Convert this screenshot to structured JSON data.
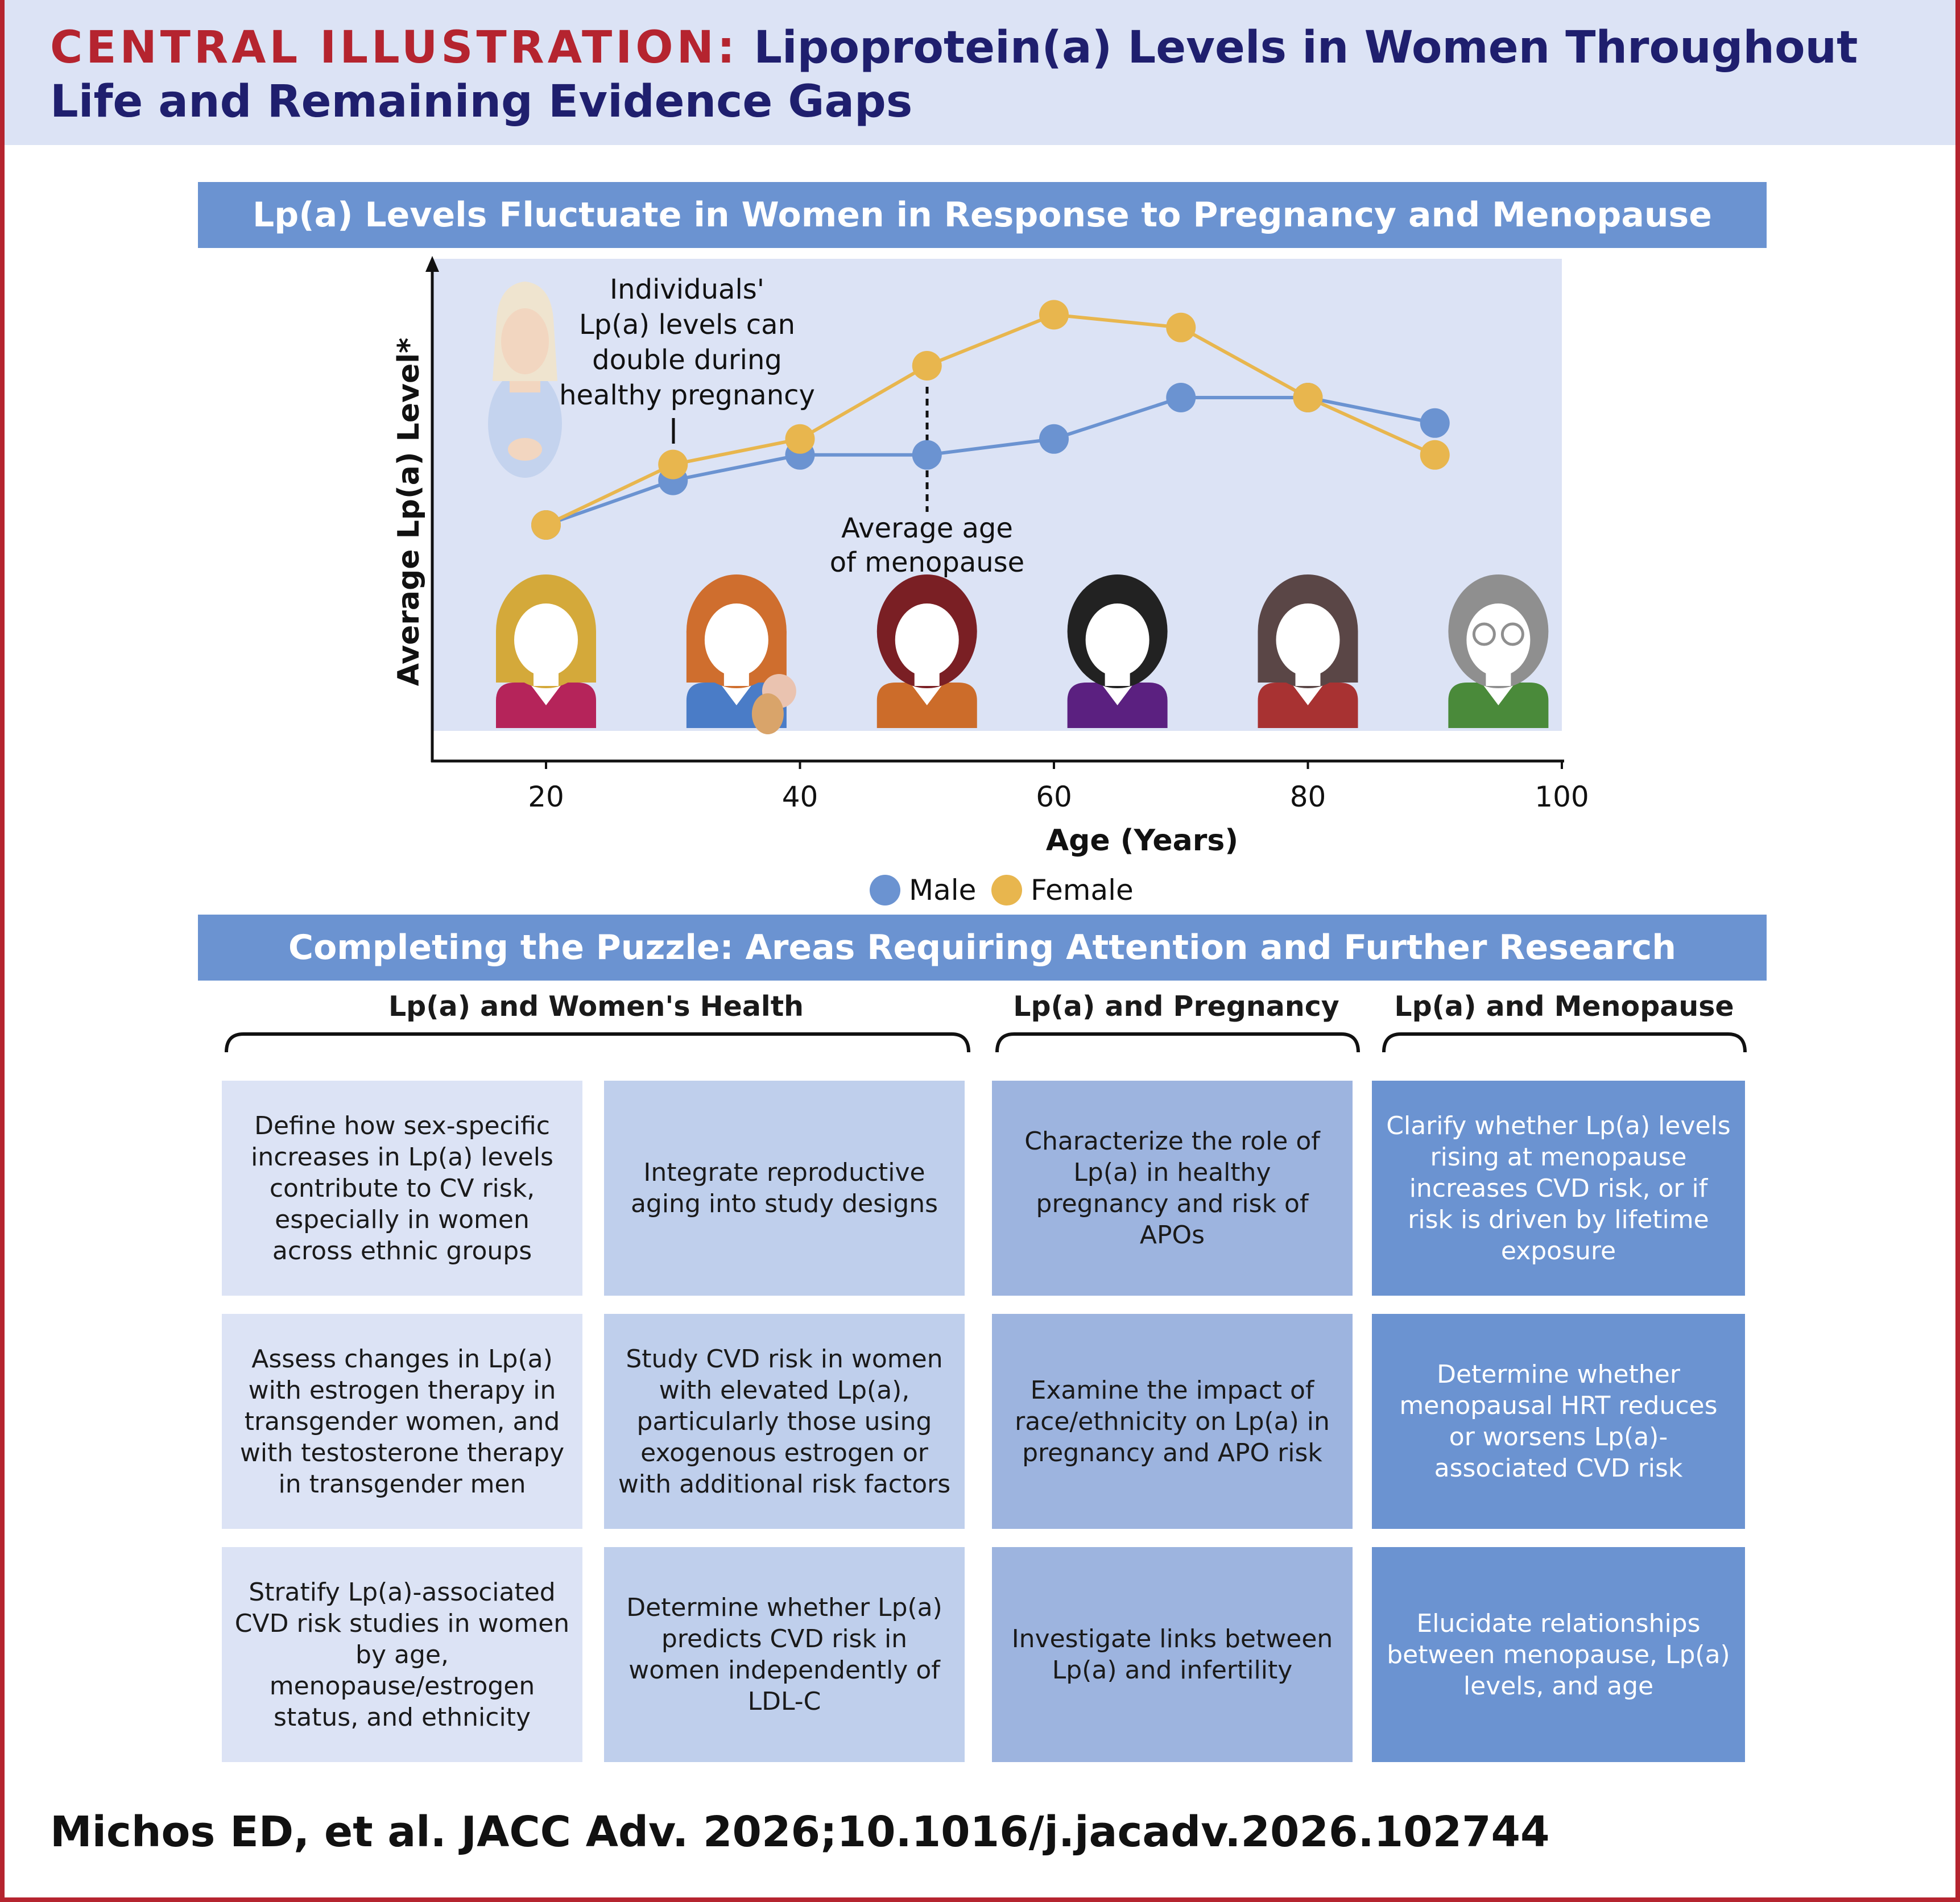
{
  "header": {
    "label": "CENTRAL ILLUSTRATION:",
    "title_line1": "Lipoprotein(a) Levels in Women Throughout",
    "title_line2": "Life and Remaining Evidence Gaps"
  },
  "section1": {
    "title": "Lp(a) Levels Fluctuate in Women in Response to Pregnancy and Menopause"
  },
  "chart_data": {
    "type": "line",
    "xlabel": "Age (Years)",
    "ylabel": "Average Lp(a) Level*",
    "xlim": [
      0,
      100
    ],
    "x_ticks": [
      "20",
      "40",
      "60",
      "80",
      "100"
    ],
    "series": [
      {
        "name": "Male",
        "color": "#6b93d1",
        "x": [
          20,
          30,
          40,
          50,
          60,
          70,
          80,
          90
        ],
        "y": [
          0.0,
          0.14,
          0.22,
          0.22,
          0.27,
          0.4,
          0.4,
          0.32
        ]
      },
      {
        "name": "Female",
        "color": "#e8b64e",
        "x": [
          20,
          30,
          40,
          50,
          60,
          70,
          80,
          90
        ],
        "y": [
          0.0,
          0.19,
          0.27,
          0.5,
          0.66,
          0.62,
          0.4,
          0.22
        ]
      }
    ],
    "annotations": {
      "pregnancy_lines": [
        "Individuals'",
        "Lp(a) levels can",
        "double during",
        "healthy pregnancy"
      ],
      "menopause_lines": [
        "Average age",
        "of menopause"
      ]
    },
    "legend_position": "bottom"
  },
  "colors": {
    "hair": [
      "#d4a93a",
      "#cf6e2e",
      "#7a1f24",
      "#222222",
      "#5a4646",
      "#8f8f8f"
    ],
    "clothes": [
      "#b5245a",
      "#4a7cc7",
      "#cc6c2a",
      "#5b2080",
      "#a83232",
      "#4a8a3a"
    ]
  },
  "section2": {
    "title": "Completing the Puzzle: Areas Requiring Attention and Further Research"
  },
  "columns": {
    "womens_health": "Lp(a) and Women's Health",
    "pregnancy": "Lp(a) and Pregnancy",
    "menopause": "Lp(a) and Menopause"
  },
  "grid": [
    [
      "Define how sex-specific increases in Lp(a) levels contribute to CV risk, especially in women across ethnic groups",
      "Integrate reproductive aging into study designs",
      "Characterize the role of Lp(a) in healthy pregnancy and risk of APOs",
      "Clarify whether Lp(a) levels rising at menopause increases CVD risk, or if risk is driven by lifetime exposure"
    ],
    [
      "Assess changes in Lp(a) with estrogen therapy in transgender women, and with testosterone therapy in transgender men",
      "Study CVD risk in women with elevated Lp(a), particularly those using exogenous estrogen or with additional risk factors",
      "Examine the impact of race/ethnicity on Lp(a) in pregnancy and APO risk",
      "Determine whether menopausal HRT reduces or worsens Lp(a)-associated CVD risk"
    ],
    [
      "Stratify Lp(a)-associated CVD risk studies in women by age, menopause/estrogen status, and ethnicity",
      "Determine whether Lp(a) predicts CVD risk in women independently of LDL-C",
      "Investigate links between Lp(a) and infertility",
      "Elucidate relationships between menopause, Lp(a) levels, and age"
    ]
  ],
  "citation": "Michos ED, et al. JACC Adv. 2026;10.1016/j.jacadv.2026.102744"
}
